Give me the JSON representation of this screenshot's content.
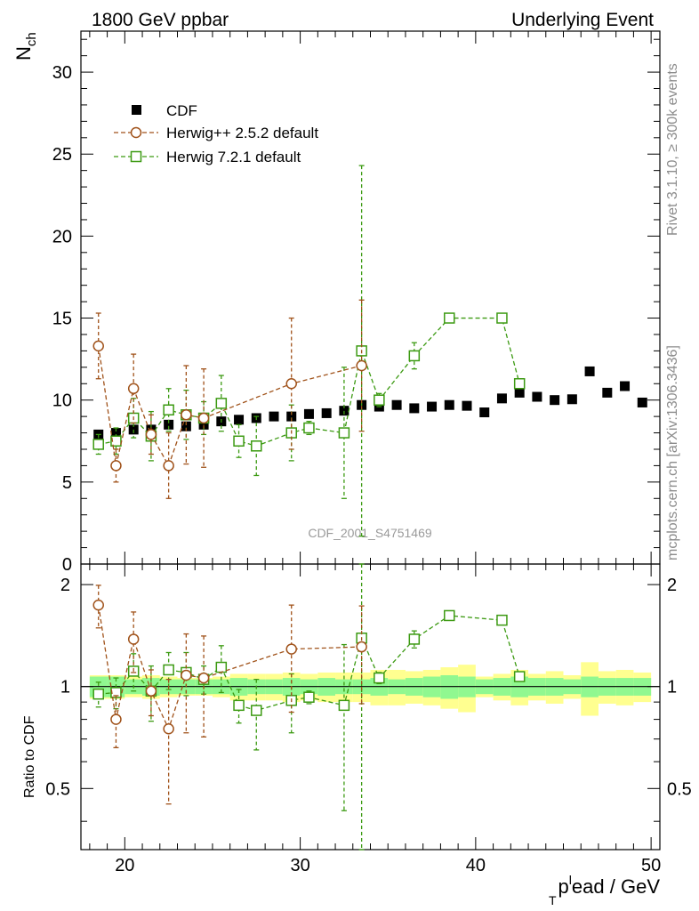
{
  "header": {
    "left": "1800 GeV ppbar",
    "right": "Underlying Event"
  },
  "side": {
    "rivet": "Rivet 3.1.10, ≥ 300k events",
    "mcplots": "mcplots.cern.ch [arXiv:1306.3436]"
  },
  "watermark": "CDF_2001_S4751469",
  "axes": {
    "ylabel_main_base": "N",
    "ylabel_main_sub": "ch",
    "ylabel_ratio": "Ratio to CDF",
    "xlabel_base": "p",
    "xlabel_sub": "T",
    "xlabel_sup": "l",
    "xlabel_rest": "ead / GeV"
  },
  "colors": {
    "cdf": "#000000",
    "herwigpp": "#a0521a",
    "herwig7": "#3c9a12",
    "band_inner": "#90f890",
    "band_outer": "#ffff90"
  },
  "chart_data": [
    {
      "type": "scatter",
      "panel": "main",
      "xlim": [
        17.5,
        50.5
      ],
      "ylim": [
        0,
        32.5
      ],
      "xticks": [
        20,
        30,
        40,
        50
      ],
      "yticks": [
        0,
        5,
        10,
        15,
        20,
        25,
        30
      ],
      "legend_position": "top-left",
      "series": [
        {
          "name": "CDF",
          "marker": "square-filled",
          "x": [
            18.5,
            19.5,
            20.5,
            21.5,
            22.5,
            23.5,
            24.5,
            25.5,
            26.5,
            27.5,
            28.5,
            29.5,
            30.5,
            31.5,
            32.5,
            33.5,
            34.5,
            35.5,
            36.5,
            37.5,
            38.5,
            39.5,
            40.5,
            41.5,
            42.5,
            43.5,
            44.5,
            45.5,
            46.5,
            47.5,
            48.5,
            49.5
          ],
          "y": [
            7.9,
            8.0,
            8.2,
            8.2,
            8.5,
            8.4,
            8.5,
            8.7,
            8.8,
            8.9,
            9.0,
            9.0,
            9.15,
            9.2,
            9.35,
            9.7,
            9.6,
            9.7,
            9.5,
            9.6,
            9.7,
            9.65,
            9.25,
            10.1,
            10.45,
            10.2,
            10.0,
            10.05,
            11.75,
            10.45,
            10.85,
            9.85
          ]
        },
        {
          "name": "Herwig++ 2.5.2 default",
          "marker": "circle-open",
          "x": [
            18.5,
            19.5,
            20.5,
            21.5,
            22.5,
            23.5,
            24.5,
            29.5,
            33.5
          ],
          "y": [
            13.3,
            6.0,
            10.7,
            7.9,
            6.0,
            9.1,
            8.9,
            11.0,
            12.1
          ],
          "yerr": [
            2.0,
            1.0,
            2.1,
            1.2,
            2.0,
            3.0,
            3.0,
            4.0,
            4.0
          ]
        },
        {
          "name": "Herwig 7.2.1 default",
          "marker": "square-open",
          "x": [
            18.5,
            19.5,
            20.5,
            21.5,
            22.5,
            23.5,
            24.5,
            25.5,
            26.5,
            27.5,
            29.5,
            30.5,
            32.5,
            33.5,
            34.5,
            36.5,
            38.5,
            41.5,
            42.5
          ],
          "y": [
            7.3,
            7.5,
            8.9,
            7.8,
            9.4,
            9.1,
            8.9,
            9.8,
            7.5,
            7.2,
            8.0,
            8.3,
            8.0,
            13.0,
            10.0,
            12.7,
            15.0,
            15.0,
            11.0
          ],
          "yerr": [
            0.6,
            0.8,
            1.2,
            1.5,
            1.3,
            1.5,
            1.0,
            1.7,
            1.0,
            1.8,
            1.7,
            0.4,
            4.0,
            11.3,
            0.4,
            0.8,
            0,
            0,
            0
          ]
        }
      ]
    },
    {
      "type": "scatter",
      "panel": "ratio",
      "xlim": [
        17.5,
        50.5
      ],
      "ylim": [
        0.33,
        2.3
      ],
      "yticks": [
        0.5,
        1,
        2
      ],
      "reference_line": 1,
      "band_halfwidth_inner": [
        0.07,
        0.07,
        0.05,
        0.06,
        0.05,
        0.05,
        0.05,
        0.05,
        0.06,
        0.05,
        0.05,
        0.06,
        0.05,
        0.06,
        0.05,
        0.05,
        0.06,
        0.05,
        0.06,
        0.07,
        0.08,
        0.07,
        0.05,
        0.06,
        0.07,
        0.06,
        0.06,
        0.05,
        0.07,
        0.06,
        0.06,
        0.06
      ],
      "band_halfwidth_outer": [
        0.08,
        0.08,
        0.07,
        0.08,
        0.07,
        0.06,
        0.06,
        0.07,
        0.09,
        0.09,
        0.09,
        0.1,
        0.09,
        0.1,
        0.1,
        0.1,
        0.12,
        0.12,
        0.11,
        0.12,
        0.14,
        0.16,
        0.07,
        0.09,
        0.12,
        0.09,
        0.11,
        0.08,
        0.18,
        0.11,
        0.12,
        0.1
      ],
      "series": [
        {
          "name": "Herwig++ 2.5.2 default",
          "x": [
            18.5,
            19.5,
            20.5,
            21.5,
            22.5,
            23.5,
            24.5,
            29.5,
            33.5
          ],
          "y": [
            1.74,
            0.8,
            1.38,
            0.97,
            0.75,
            1.08,
            1.06,
            1.29,
            1.31
          ],
          "yerr": [
            0.25,
            0.14,
            0.28,
            0.15,
            0.3,
            0.35,
            0.35,
            0.45,
            0.42
          ]
        },
        {
          "name": "Herwig 7.2.1 default",
          "x": [
            18.5,
            19.5,
            20.5,
            21.5,
            22.5,
            23.5,
            24.5,
            25.5,
            26.5,
            27.5,
            29.5,
            30.5,
            32.5,
            33.5,
            34.5,
            36.5,
            38.5,
            41.5,
            42.5
          ],
          "y": [
            0.95,
            0.96,
            1.11,
            0.97,
            1.12,
            1.1,
            1.05,
            1.14,
            0.88,
            0.85,
            0.91,
            0.93,
            0.88,
            1.39,
            1.06,
            1.38,
            1.62,
            1.57,
            1.07
          ],
          "yerr": [
            0.08,
            0.1,
            0.14,
            0.18,
            0.14,
            0.16,
            0.1,
            0.18,
            0.1,
            0.2,
            0.18,
            0.04,
            0.45,
            1.2,
            0.04,
            0.08,
            0,
            0,
            0
          ]
        }
      ]
    }
  ],
  "legend": {
    "cdf": "CDF",
    "herwigpp": "Herwig++ 2.5.2 default",
    "herwig7": "Herwig 7.2.1 default"
  }
}
